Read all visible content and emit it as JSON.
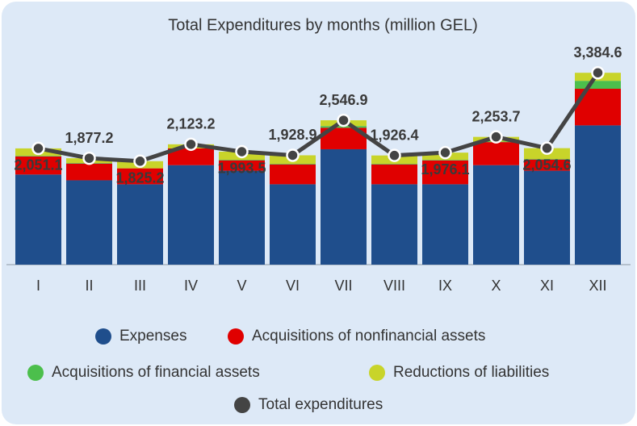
{
  "chart_data": {
    "type": "bar",
    "stacked": true,
    "title": "Total Expenditures by months (million GEL)",
    "categories": [
      "I",
      "II",
      "III",
      "IV",
      "V",
      "VI",
      "VII",
      "VIII",
      "IX",
      "X",
      "XI",
      "XII"
    ],
    "series": [
      {
        "name": "Expenses",
        "color": "#1f4e8c",
        "values": [
          1590,
          1488,
          1418,
          1755,
          1657,
          1418,
          2036,
          1418,
          1418,
          1755,
          1657,
          2457
        ]
      },
      {
        "name": "Acquisitions of nonfinancial assets",
        "color": "#e00000",
        "values": [
          320,
          295,
          281,
          295,
          183,
          351,
          379,
          351,
          421,
          407,
          197,
          646
        ]
      },
      {
        "name": "Acquisitions of financial assets",
        "color": "#4cbf4c",
        "values": [
          10,
          10,
          0,
          0,
          10,
          10,
          30,
          10,
          10,
          10,
          10,
          140
        ]
      },
      {
        "name": "Reductions of liabilities",
        "color": "#c8d42a",
        "values": [
          131,
          84,
          126,
          73,
          143,
          150,
          102,
          147,
          127,
          82,
          191,
          142
        ]
      },
      {
        "name": "Total expenditures",
        "type": "line",
        "color": "#444444",
        "values": [
          2051.1,
          1877.2,
          1825.2,
          2123.2,
          1993.5,
          1928.9,
          2546.9,
          1926.4,
          1976.1,
          2253.7,
          2054.6,
          3384.6
        ],
        "value_labels": [
          "2,051.1",
          "1,877.2",
          "1,825.2",
          "2,123.2",
          "1,993.5",
          "1,928.9",
          "2,546.9",
          "1,926.4",
          "1,976.1",
          "2,253.7",
          "2,054.6",
          "3,384.6"
        ]
      }
    ],
    "ylim": [
      0,
      4000
    ],
    "legend": "bottom"
  }
}
